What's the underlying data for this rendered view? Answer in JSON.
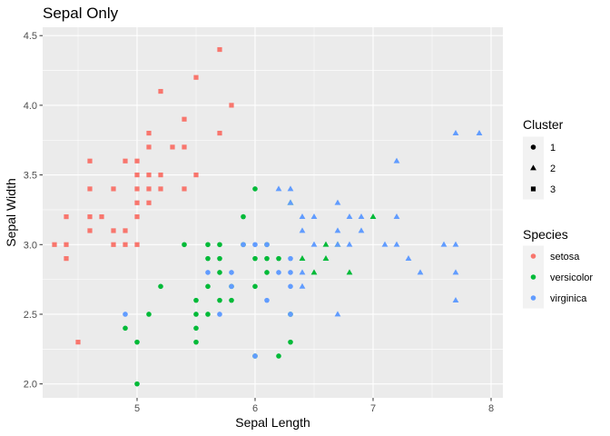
{
  "chart_data": {
    "type": "scatter",
    "title": "Sepal Only",
    "xlabel": "Sepal Length",
    "ylabel": "Sepal Width",
    "xlim": [
      4.2,
      8.1
    ],
    "ylim": [
      1.9,
      4.56
    ],
    "xticks": [
      5,
      6,
      7,
      8
    ],
    "yticks": [
      2.0,
      2.5,
      3.0,
      3.5,
      4.0,
      4.5
    ],
    "grid": true,
    "colors": {
      "panel": "#EBEBEB",
      "grid": "#FFFFFF",
      "setosa": "#F8766D",
      "versicolor": "#00BA38",
      "virginica": "#619CFF"
    },
    "legend_cluster": {
      "title": "Cluster",
      "entries": [
        {
          "label": "1",
          "shape": "circle"
        },
        {
          "label": "2",
          "shape": "triangle"
        },
        {
          "label": "3",
          "shape": "square"
        }
      ]
    },
    "legend_species": {
      "title": "Species",
      "entries": [
        {
          "label": "setosa",
          "color": "#F8766D"
        },
        {
          "label": "versicolor",
          "color": "#00BA38"
        },
        {
          "label": "virginica",
          "color": "#619CFF"
        }
      ]
    },
    "series": [
      {
        "name": "setosa",
        "shape": "square",
        "points": [
          [
            4.3,
            3.0
          ],
          [
            4.4,
            3.2
          ],
          [
            4.4,
            3.0
          ],
          [
            4.4,
            2.9
          ],
          [
            4.5,
            2.3
          ],
          [
            4.6,
            3.6
          ],
          [
            4.6,
            3.4
          ],
          [
            4.6,
            3.2
          ],
          [
            4.6,
            3.1
          ],
          [
            4.7,
            3.2
          ],
          [
            4.8,
            3.4
          ],
          [
            4.8,
            3.1
          ],
          [
            4.8,
            3.0
          ],
          [
            4.9,
            3.6
          ],
          [
            4.9,
            3.1
          ],
          [
            4.9,
            3.0
          ],
          [
            5.0,
            3.6
          ],
          [
            5.0,
            3.5
          ],
          [
            5.0,
            3.4
          ],
          [
            5.0,
            3.3
          ],
          [
            5.0,
            3.2
          ],
          [
            5.0,
            3.0
          ],
          [
            5.1,
            3.8
          ],
          [
            5.1,
            3.7
          ],
          [
            5.1,
            3.5
          ],
          [
            5.1,
            3.4
          ],
          [
            5.1,
            3.3
          ],
          [
            5.2,
            4.1
          ],
          [
            5.2,
            3.5
          ],
          [
            5.2,
            3.4
          ],
          [
            5.3,
            3.7
          ],
          [
            5.4,
            3.9
          ],
          [
            5.4,
            3.7
          ],
          [
            5.4,
            3.4
          ],
          [
            5.5,
            4.2
          ],
          [
            5.5,
            3.5
          ],
          [
            5.7,
            4.4
          ],
          [
            5.7,
            3.8
          ],
          [
            5.8,
            4.0
          ]
        ]
      },
      {
        "name": "versicolor",
        "shape": "circle",
        "points": [
          [
            4.9,
            2.4
          ],
          [
            5.0,
            2.3
          ],
          [
            5.0,
            2.0
          ],
          [
            5.1,
            2.5
          ],
          [
            5.2,
            2.7
          ],
          [
            5.4,
            3.0
          ],
          [
            5.5,
            2.6
          ],
          [
            5.5,
            2.5
          ],
          [
            5.5,
            2.4
          ],
          [
            5.5,
            2.3
          ],
          [
            5.6,
            3.0
          ],
          [
            5.6,
            2.9
          ],
          [
            5.6,
            2.7
          ],
          [
            5.6,
            2.5
          ],
          [
            5.7,
            3.0
          ],
          [
            5.7,
            2.9
          ],
          [
            5.7,
            2.8
          ],
          [
            5.7,
            2.6
          ],
          [
            5.8,
            2.7
          ],
          [
            5.8,
            2.6
          ],
          [
            5.9,
            3.2
          ],
          [
            5.9,
            3.0
          ],
          [
            6.0,
            3.4
          ],
          [
            6.0,
            2.9
          ],
          [
            6.0,
            2.7
          ],
          [
            6.0,
            2.2
          ],
          [
            6.1,
            3.0
          ],
          [
            6.1,
            2.9
          ],
          [
            6.1,
            2.8
          ],
          [
            6.2,
            2.9
          ],
          [
            6.2,
            2.2
          ],
          [
            6.3,
            2.5
          ],
          [
            6.3,
            2.3
          ]
        ]
      },
      {
        "name": "versicolor",
        "shape": "triangle",
        "points": [
          [
            6.3,
            3.3
          ],
          [
            6.4,
            2.9
          ],
          [
            6.5,
            2.8
          ],
          [
            6.6,
            3.0
          ],
          [
            6.6,
            2.9
          ],
          [
            6.7,
            3.0
          ],
          [
            6.8,
            2.8
          ],
          [
            7.0,
            3.2
          ]
        ]
      },
      {
        "name": "virginica",
        "shape": "circle",
        "points": [
          [
            4.9,
            2.5
          ],
          [
            5.6,
            2.8
          ],
          [
            5.7,
            2.5
          ],
          [
            5.8,
            2.8
          ],
          [
            5.8,
            2.7
          ],
          [
            5.9,
            3.0
          ],
          [
            6.0,
            3.0
          ],
          [
            6.0,
            2.2
          ],
          [
            6.1,
            3.0
          ],
          [
            6.1,
            2.6
          ],
          [
            6.2,
            2.8
          ],
          [
            6.3,
            2.9
          ],
          [
            6.3,
            2.8
          ],
          [
            6.3,
            2.7
          ],
          [
            6.3,
            2.5
          ]
        ]
      },
      {
        "name": "virginica",
        "shape": "triangle",
        "points": [
          [
            6.2,
            3.4
          ],
          [
            6.3,
            3.4
          ],
          [
            6.3,
            3.3
          ],
          [
            6.4,
            3.2
          ],
          [
            6.4,
            3.1
          ],
          [
            6.4,
            2.8
          ],
          [
            6.4,
            2.7
          ],
          [
            6.5,
            3.2
          ],
          [
            6.5,
            3.0
          ],
          [
            6.7,
            3.3
          ],
          [
            6.7,
            3.1
          ],
          [
            6.7,
            3.0
          ],
          [
            6.7,
            2.5
          ],
          [
            6.8,
            3.2
          ],
          [
            6.8,
            3.0
          ],
          [
            6.9,
            3.2
          ],
          [
            6.9,
            3.1
          ],
          [
            7.1,
            3.0
          ],
          [
            7.2,
            3.6
          ],
          [
            7.2,
            3.2
          ],
          [
            7.2,
            3.0
          ],
          [
            7.3,
            2.9
          ],
          [
            7.4,
            2.8
          ],
          [
            7.6,
            3.0
          ],
          [
            7.7,
            3.8
          ],
          [
            7.7,
            3.0
          ],
          [
            7.7,
            2.8
          ],
          [
            7.7,
            2.6
          ],
          [
            7.9,
            3.8
          ]
        ]
      }
    ]
  }
}
